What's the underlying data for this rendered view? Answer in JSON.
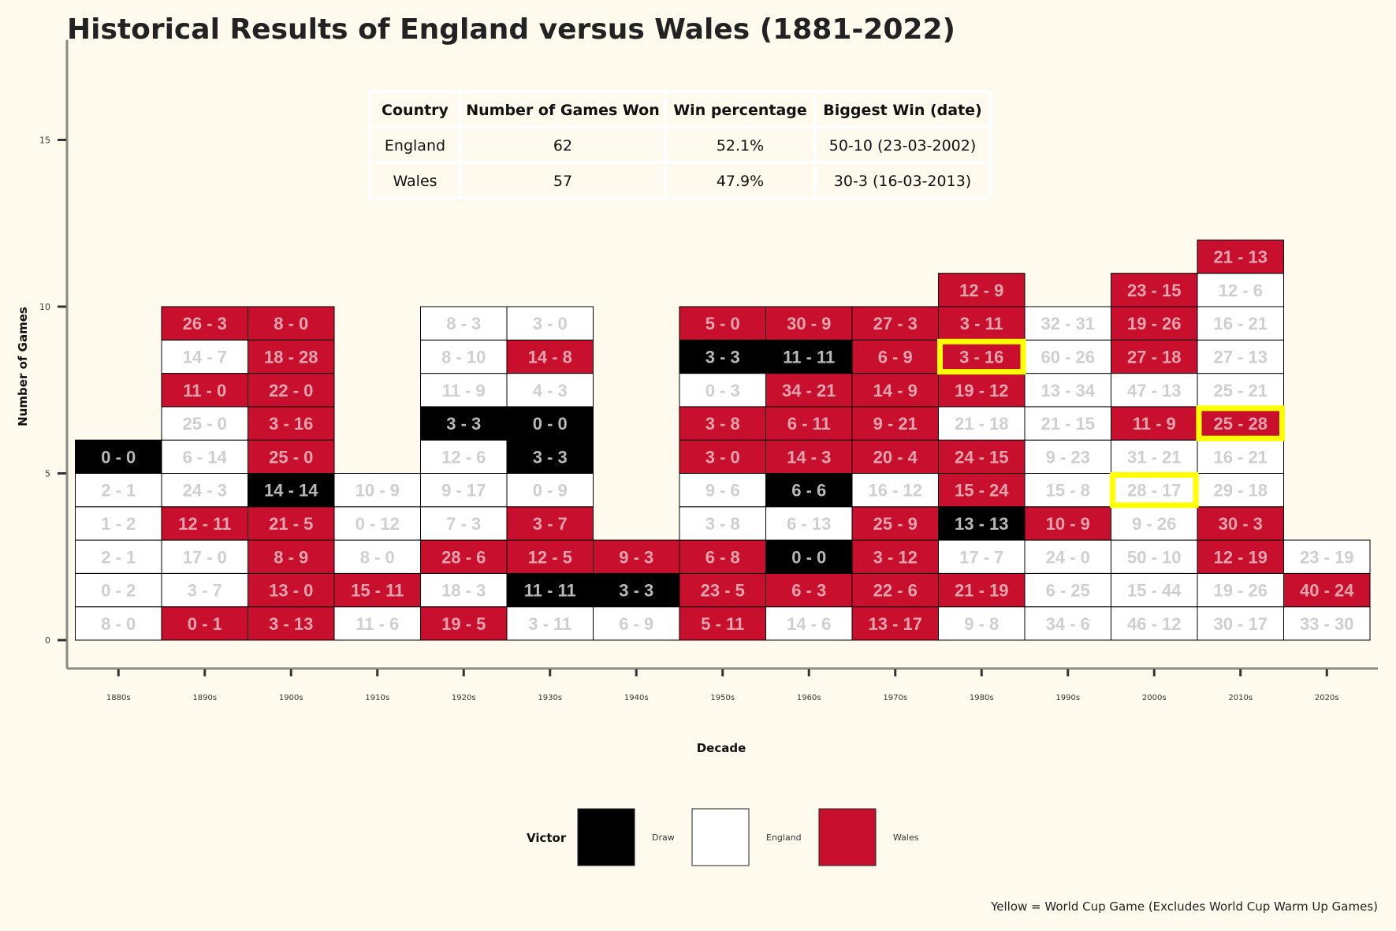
{
  "chart_data": {
    "type": "heatmap",
    "title": "Historical Results of England versus Wales (1881-2022)",
    "xlabel": "Decade",
    "ylabel": "Number of Games",
    "ylim": [
      0,
      18
    ],
    "yticks": [
      0,
      5,
      10,
      15
    ],
    "caption": "Yellow = World Cup Game (Excludes World Cup Warm Up Games)",
    "colors": {
      "Draw": "#000000",
      "England": "#ffffff",
      "Wales": "#c8102e",
      "world_cup": "#ffff00"
    },
    "legend": {
      "title": "Victor",
      "entries": [
        {
          "name": "Draw",
          "color": "#000000"
        },
        {
          "name": "England",
          "color": "#ffffff"
        },
        {
          "name": "Wales",
          "color": "#c8102e"
        }
      ]
    },
    "summary_table": {
      "columns": [
        "Country",
        "Number of Games Won",
        "Win percentage",
        "Biggest Win (date)"
      ],
      "rows": [
        [
          "England",
          "62",
          "52.1%",
          "50-10 (23-03-2002)"
        ],
        [
          "Wales",
          "57",
          "47.9%",
          "30-3 (16-03-2013)"
        ]
      ]
    },
    "decades": [
      {
        "decade": "1880s",
        "games": [
          {
            "score": "8 - 0",
            "victor": "England"
          },
          {
            "score": "0 - 2",
            "victor": "England"
          },
          {
            "score": "2 - 1",
            "victor": "England"
          },
          {
            "score": "1 - 2",
            "victor": "England"
          },
          {
            "score": "2 - 1",
            "victor": "England"
          },
          {
            "score": "0 - 0",
            "victor": "Draw"
          }
        ]
      },
      {
        "decade": "1890s",
        "games": [
          {
            "score": "0 - 1",
            "victor": "Wales"
          },
          {
            "score": "3 - 7",
            "victor": "England"
          },
          {
            "score": "17 - 0",
            "victor": "England"
          },
          {
            "score": "12 - 11",
            "victor": "Wales"
          },
          {
            "score": "24 - 3",
            "victor": "England"
          },
          {
            "score": "6 - 14",
            "victor": "England"
          },
          {
            "score": "25 - 0",
            "victor": "England"
          },
          {
            "score": "11 - 0",
            "victor": "Wales"
          },
          {
            "score": "14 - 7",
            "victor": "England"
          },
          {
            "score": "26 - 3",
            "victor": "Wales"
          }
        ]
      },
      {
        "decade": "1900s",
        "games": [
          {
            "score": "3 - 13",
            "victor": "Wales"
          },
          {
            "score": "13 - 0",
            "victor": "Wales"
          },
          {
            "score": "8 - 9",
            "victor": "Wales"
          },
          {
            "score": "21 - 5",
            "victor": "Wales"
          },
          {
            "score": "14 - 14",
            "victor": "Draw"
          },
          {
            "score": "25 - 0",
            "victor": "Wales"
          },
          {
            "score": "3 - 16",
            "victor": "Wales"
          },
          {
            "score": "22 - 0",
            "victor": "Wales"
          },
          {
            "score": "18 - 28",
            "victor": "Wales"
          },
          {
            "score": "8 - 0",
            "victor": "Wales"
          }
        ]
      },
      {
        "decade": "1910s",
        "games": [
          {
            "score": "11 - 6",
            "victor": "England"
          },
          {
            "score": "15 - 11",
            "victor": "Wales"
          },
          {
            "score": "8 - 0",
            "victor": "England"
          },
          {
            "score": "0 - 12",
            "victor": "England"
          },
          {
            "score": "10 - 9",
            "victor": "England"
          }
        ]
      },
      {
        "decade": "1920s",
        "games": [
          {
            "score": "19 - 5",
            "victor": "Wales"
          },
          {
            "score": "18 - 3",
            "victor": "England"
          },
          {
            "score": "28 - 6",
            "victor": "Wales"
          },
          {
            "score": "7 - 3",
            "victor": "England"
          },
          {
            "score": "9 - 17",
            "victor": "England"
          },
          {
            "score": "12 - 6",
            "victor": "England"
          },
          {
            "score": "3 - 3",
            "victor": "Draw"
          },
          {
            "score": "11 - 9",
            "victor": "England"
          },
          {
            "score": "8 - 10",
            "victor": "England"
          },
          {
            "score": "8 - 3",
            "victor": "England"
          }
        ]
      },
      {
        "decade": "1930s",
        "games": [
          {
            "score": "3 - 11",
            "victor": "England"
          },
          {
            "score": "11 - 11",
            "victor": "Draw"
          },
          {
            "score": "12 - 5",
            "victor": "Wales"
          },
          {
            "score": "3 - 7",
            "victor": "Wales"
          },
          {
            "score": "0 - 9",
            "victor": "England"
          },
          {
            "score": "3 - 3",
            "victor": "Draw"
          },
          {
            "score": "0 - 0",
            "victor": "Draw"
          },
          {
            "score": "4 - 3",
            "victor": "England"
          },
          {
            "score": "14 - 8",
            "victor": "Wales"
          },
          {
            "score": "3 - 0",
            "victor": "England"
          }
        ]
      },
      {
        "decade": "1940s",
        "games": [
          {
            "score": "6 - 9",
            "victor": "England"
          },
          {
            "score": "3 - 3",
            "victor": "Draw"
          },
          {
            "score": "9 - 3",
            "victor": "Wales"
          }
        ]
      },
      {
        "decade": "1950s",
        "games": [
          {
            "score": "5 - 11",
            "victor": "Wales"
          },
          {
            "score": "23 - 5",
            "victor": "Wales"
          },
          {
            "score": "6 - 8",
            "victor": "Wales"
          },
          {
            "score": "3 - 8",
            "victor": "England"
          },
          {
            "score": "9 - 6",
            "victor": "England"
          },
          {
            "score": "3 - 0",
            "victor": "Wales"
          },
          {
            "score": "3 - 8",
            "victor": "Wales"
          },
          {
            "score": "0 - 3",
            "victor": "England"
          },
          {
            "score": "3 - 3",
            "victor": "Draw"
          },
          {
            "score": "5 - 0",
            "victor": "Wales"
          }
        ]
      },
      {
        "decade": "1960s",
        "games": [
          {
            "score": "14 - 6",
            "victor": "England"
          },
          {
            "score": "6 - 3",
            "victor": "Wales"
          },
          {
            "score": "0 - 0",
            "victor": "Draw"
          },
          {
            "score": "6 - 13",
            "victor": "England"
          },
          {
            "score": "6 - 6",
            "victor": "Draw"
          },
          {
            "score": "14 - 3",
            "victor": "Wales"
          },
          {
            "score": "6 - 11",
            "victor": "Wales"
          },
          {
            "score": "34 - 21",
            "victor": "Wales"
          },
          {
            "score": "11 - 11",
            "victor": "Draw"
          },
          {
            "score": "30 - 9",
            "victor": "Wales"
          }
        ]
      },
      {
        "decade": "1970s",
        "games": [
          {
            "score": "13 - 17",
            "victor": "Wales"
          },
          {
            "score": "22 - 6",
            "victor": "Wales"
          },
          {
            "score": "3 - 12",
            "victor": "Wales"
          },
          {
            "score": "25 - 9",
            "victor": "Wales"
          },
          {
            "score": "16 - 12",
            "victor": "England"
          },
          {
            "score": "20 - 4",
            "victor": "Wales"
          },
          {
            "score": "9 - 21",
            "victor": "Wales"
          },
          {
            "score": "14 - 9",
            "victor": "Wales"
          },
          {
            "score": "6 - 9",
            "victor": "Wales"
          },
          {
            "score": "27 - 3",
            "victor": "Wales"
          }
        ]
      },
      {
        "decade": "1980s",
        "games": [
          {
            "score": "9 - 8",
            "victor": "England"
          },
          {
            "score": "21 - 19",
            "victor": "Wales"
          },
          {
            "score": "17 - 7",
            "victor": "England"
          },
          {
            "score": "13 - 13",
            "victor": "Draw"
          },
          {
            "score": "15 - 24",
            "victor": "Wales"
          },
          {
            "score": "24 - 15",
            "victor": "Wales"
          },
          {
            "score": "21 - 18",
            "victor": "England"
          },
          {
            "score": "19 - 12",
            "victor": "Wales"
          },
          {
            "score": "3 - 16",
            "victor": "Wales",
            "world_cup": true
          },
          {
            "score": "3 - 11",
            "victor": "Wales"
          },
          {
            "score": "12 - 9",
            "victor": "Wales"
          }
        ]
      },
      {
        "decade": "1990s",
        "games": [
          {
            "score": "34 - 6",
            "victor": "England"
          },
          {
            "score": "6 - 25",
            "victor": "England"
          },
          {
            "score": "24 - 0",
            "victor": "England"
          },
          {
            "score": "10 - 9",
            "victor": "Wales"
          },
          {
            "score": "15 - 8",
            "victor": "England"
          },
          {
            "score": "9 - 23",
            "victor": "England"
          },
          {
            "score": "21 - 15",
            "victor": "England"
          },
          {
            "score": "13 - 34",
            "victor": "England"
          },
          {
            "score": "60 - 26",
            "victor": "England"
          },
          {
            "score": "32 - 31",
            "victor": "England"
          }
        ]
      },
      {
        "decade": "2000s",
        "games": [
          {
            "score": "46 - 12",
            "victor": "England"
          },
          {
            "score": "15 - 44",
            "victor": "England"
          },
          {
            "score": "50 - 10",
            "victor": "England"
          },
          {
            "score": "9 - 26",
            "victor": "England"
          },
          {
            "score": "28 - 17",
            "victor": "England",
            "world_cup": true
          },
          {
            "score": "31 - 21",
            "victor": "England"
          },
          {
            "score": "11 - 9",
            "victor": "Wales"
          },
          {
            "score": "47 - 13",
            "victor": "England"
          },
          {
            "score": "27 - 18",
            "victor": "Wales"
          },
          {
            "score": "19 - 26",
            "victor": "Wales"
          },
          {
            "score": "23 - 15",
            "victor": "Wales"
          }
        ]
      },
      {
        "decade": "2010s",
        "games": [
          {
            "score": "30 - 17",
            "victor": "England"
          },
          {
            "score": "19 - 26",
            "victor": "England"
          },
          {
            "score": "12 - 19",
            "victor": "Wales"
          },
          {
            "score": "30 - 3",
            "victor": "Wales"
          },
          {
            "score": "29 - 18",
            "victor": "England"
          },
          {
            "score": "16 - 21",
            "victor": "England"
          },
          {
            "score": "25 - 28",
            "victor": "Wales",
            "world_cup": true
          },
          {
            "score": "25 - 21",
            "victor": "England"
          },
          {
            "score": "27 - 13",
            "victor": "England"
          },
          {
            "score": "16 - 21",
            "victor": "England"
          },
          {
            "score": "12 - 6",
            "victor": "England"
          },
          {
            "score": "21 - 13",
            "victor": "Wales"
          }
        ]
      },
      {
        "decade": "2020s",
        "games": [
          {
            "score": "33 - 30",
            "victor": "England"
          },
          {
            "score": "40 - 24",
            "victor": "Wales"
          },
          {
            "score": "23 - 19",
            "victor": "England"
          }
        ]
      }
    ]
  }
}
